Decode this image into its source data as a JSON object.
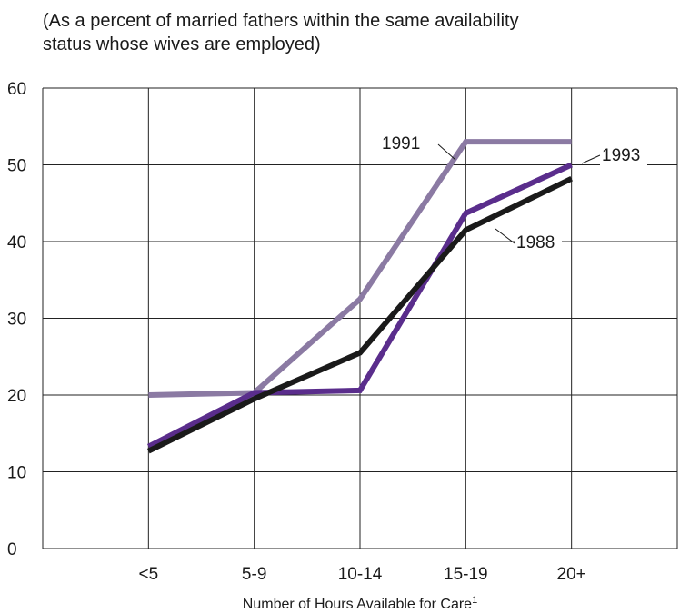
{
  "subtitle_line1": "(As a percent of married fathers within the same availability",
  "subtitle_line2": "status whose wives are employed)",
  "chart_data": {
    "type": "line",
    "categories": [
      "<5",
      "5-9",
      "10-14",
      "15-19",
      "20+"
    ],
    "xlabel": "Number of Hours Available for Care",
    "xlabel_footnote": "1",
    "ylabel": "",
    "ylim": [
      0,
      60
    ],
    "yticks": [
      0,
      10,
      20,
      30,
      40,
      50,
      60
    ],
    "grid": true,
    "series": [
      {
        "name": "1991",
        "color": "#8b7aa3",
        "values": [
          20,
          20.3,
          32.5,
          53,
          53
        ]
      },
      {
        "name": "1993",
        "color": "#5a2d8c",
        "values": [
          13.3,
          20.3,
          20.6,
          43.7,
          50
        ]
      },
      {
        "name": "1988",
        "color": "#1a1a1a",
        "values": [
          12.7,
          19.5,
          25.5,
          41.5,
          48.2
        ]
      }
    ]
  }
}
